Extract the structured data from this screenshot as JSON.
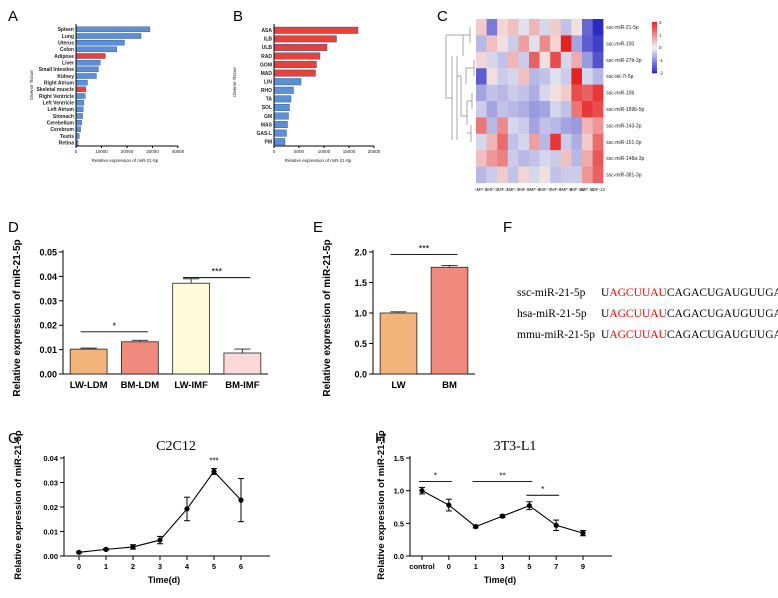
{
  "colors": {
    "blue_bar": "#5b8fd6",
    "red_bar": "#e8403a",
    "bar_edge": "#2a4c8a",
    "heat_low": "#2b2bc4",
    "heat_mid": "#f4f4f4",
    "heat_high": "#e52222",
    "ldm": "#f2b47a",
    "bm": "#f08a7e",
    "lwimf": "#fffbd8",
    "bmimf": "#fbd9d9",
    "seq_red": "#ff0000"
  },
  "panels": {
    "A": "A",
    "B": "B",
    "C": "C",
    "D": "D",
    "E": "E",
    "F": "F",
    "G": "G",
    "H": "H"
  },
  "chart_data": [
    {
      "id": "A",
      "type": "bar",
      "orientation": "horizontal",
      "xlabel": "Relative expression of miR-21-5p",
      "ylabel": "Diverse Tissue",
      "xticks": [
        "0",
        "10000",
        "20000",
        "30000",
        "40000"
      ],
      "xlim": [
        0,
        40000
      ],
      "categories": [
        "Spleen",
        "Lung",
        "Uterus",
        "Colon",
        "Adipose",
        "Liver",
        "Small Intestine",
        "Kidney",
        "Right Atrium",
        "Skeletal muscle",
        "Right Ventricle",
        "Left Ventricle",
        "Left Atrium",
        "Stomach",
        "Cerebellum",
        "Cerebrum",
        "Testis",
        "Retina"
      ],
      "values": [
        29000,
        25500,
        19000,
        16000,
        11500,
        9500,
        8800,
        8000,
        4500,
        3800,
        3600,
        3100,
        2800,
        2600,
        2200,
        1800,
        1300,
        800
      ],
      "highlight": [
        "Adipose",
        "Skeletal muscle"
      ]
    },
    {
      "id": "B",
      "type": "bar",
      "orientation": "horizontal",
      "xlabel": "Relative expression of miR-21-5p",
      "ylabel": "Diverse Tissue",
      "xticks": [
        "0",
        "5000",
        "10000",
        "15000",
        "20000"
      ],
      "xlim": [
        0,
        20000
      ],
      "categories": [
        "ASA",
        "ILB",
        "ULB",
        "RAD",
        "GOM",
        "MAD",
        "LIN",
        "RHO",
        "TA",
        "SOL",
        "GM",
        "MAS",
        "GAS-L",
        "PM"
      ],
      "values": [
        16800,
        12500,
        10600,
        9200,
        8500,
        8300,
        5400,
        3900,
        3400,
        3100,
        2900,
        2700,
        2500,
        2200
      ],
      "highlight": [
        "ASA",
        "ILB",
        "ULB",
        "RAD",
        "GOM",
        "MAD"
      ]
    },
    {
      "id": "C",
      "type": "heatmap",
      "rows": [
        "ssc-miR-21-5p",
        "ssc-miR-100",
        "ssc-miR-27b-3p",
        "ssc-let-7i-5p",
        "ssc-miR-10b",
        "ssc-miR-199b-5p",
        "ssc-miR-143-3p",
        "ssc-miR-151-3p",
        "ssc-miR-148a-3p",
        "ssc-miR-381-3p"
      ],
      "columns": [
        "IMF-1",
        "IMF-2",
        "IMF-3",
        "IMF-4",
        "IMF-5",
        "IMF-6",
        "IMF-7",
        "IMF-8",
        "IMF-9",
        "IMF-10",
        "IMF-11",
        "IMF-12"
      ],
      "scale_ticks": [
        "2",
        "1",
        "0",
        "-1",
        "-2"
      ],
      "zlim": [
        -2,
        2
      ],
      "values": [
        [
          0.4,
          -1.2,
          0.3,
          0.5,
          -0.2,
          0.6,
          -0.3,
          0.4,
          -0.5,
          0.2,
          -1.4,
          -2.0
        ],
        [
          -0.6,
          0.5,
          0.2,
          -0.4,
          0.8,
          -0.2,
          1.0,
          0.3,
          2.0,
          -0.8,
          -1.5,
          -1.8
        ],
        [
          0.3,
          -0.3,
          -0.5,
          0.6,
          -0.4,
          1.4,
          0.2,
          1.6,
          -0.3,
          0.7,
          -0.9,
          -1.6
        ],
        [
          -1.5,
          0.2,
          -0.4,
          -0.3,
          0.5,
          -0.6,
          -0.5,
          -0.2,
          -0.4,
          2.0,
          -0.3,
          -0.6
        ],
        [
          -0.8,
          -0.5,
          -0.6,
          -0.4,
          -0.5,
          -0.7,
          -0.3,
          0.2,
          0.4,
          1.6,
          1.4,
          1.8
        ],
        [
          -0.4,
          -0.8,
          -0.5,
          -0.6,
          -0.7,
          -0.9,
          -0.8,
          -0.3,
          -0.5,
          1.2,
          1.8,
          1.6
        ],
        [
          1.2,
          -0.6,
          1.0,
          -0.3,
          -0.4,
          -0.8,
          -0.5,
          -0.6,
          -0.8,
          -0.9,
          0.6,
          0.9
        ],
        [
          -0.3,
          0.6,
          1.3,
          -0.5,
          -0.3,
          0.8,
          -0.6,
          1.8,
          -0.4,
          -0.7,
          0.4,
          1.3
        ],
        [
          0.5,
          0.9,
          1.1,
          -0.4,
          -0.6,
          -0.5,
          -0.3,
          -0.4,
          0.5,
          -0.6,
          0.7,
          1.5
        ],
        [
          -0.6,
          -0.4,
          0.4,
          -0.5,
          0.3,
          -0.3,
          0.2,
          -0.5,
          -0.4,
          -0.4,
          0.9,
          1.4
        ]
      ]
    },
    {
      "id": "D",
      "type": "bar",
      "ylabel": "Relative expression of miR-21-5p",
      "categories": [
        "LW-LDM",
        "BM-LDM",
        "LW-IMF",
        "BM-IMF"
      ],
      "values": [
        0.0102,
        0.0132,
        0.0372,
        0.0086
      ],
      "errors": [
        0.0004,
        0.0006,
        0.0018,
        0.0016
      ],
      "ylim": [
        0,
        0.05
      ],
      "yticks": [
        "0.00",
        "0.01",
        "0.02",
        "0.03",
        "0.04",
        "0.05"
      ],
      "annotations": [
        "*",
        "***"
      ]
    },
    {
      "id": "E",
      "type": "bar",
      "ylabel": "Relative expression of miR-21-5p",
      "categories": [
        "LW",
        "BM"
      ],
      "values": [
        1.0,
        1.75
      ],
      "errors": [
        0.02,
        0.03
      ],
      "ylim": [
        0,
        2.0
      ],
      "yticks": [
        "0.0",
        "0.5",
        "1.0",
        "1.5",
        "2.0"
      ],
      "annotations": [
        "***"
      ]
    },
    {
      "id": "G",
      "type": "line",
      "title": "C2C12",
      "xlabel": "Time(d)",
      "ylabel": "Relative expression of miR-21-5p",
      "x": [
        "0",
        "1",
        "2",
        "3",
        "4",
        "5",
        "6"
      ],
      "values": [
        0.0015,
        0.0027,
        0.0037,
        0.0065,
        0.0192,
        0.0345,
        0.0228
      ],
      "errors": [
        0.0002,
        0.0003,
        0.0009,
        0.0015,
        0.0048,
        0.0012,
        0.0088
      ],
      "ylim": [
        0,
        0.04
      ],
      "yticks": [
        "0.00",
        "0.01",
        "0.02",
        "0.03",
        "0.04"
      ],
      "annotations": [
        "***"
      ]
    },
    {
      "id": "H",
      "type": "line",
      "title": "3T3-L1",
      "xlabel": "Time(d)",
      "ylabel": "Relative expression of miR-21-5p",
      "x": [
        "control",
        "0",
        "1",
        "3",
        "5",
        "7",
        "9"
      ],
      "values": [
        1.0,
        0.78,
        0.45,
        0.61,
        0.77,
        0.47,
        0.35
      ],
      "errors": [
        0.05,
        0.09,
        0.02,
        0.02,
        0.06,
        0.08,
        0.04
      ],
      "ylim": [
        0,
        1.5
      ],
      "yticks": [
        "0.0",
        "0.5",
        "1.0",
        "1.5"
      ],
      "annotations": [
        "*",
        "**",
        "*"
      ]
    }
  ],
  "panelF": {
    "rows": [
      {
        "name": "ssc-miR-21-5p",
        "prefix": "U",
        "seed": "AGCUUAU",
        "rest": "CAGACUGAUGUUGA"
      },
      {
        "name": "hsa-miR-21-5p",
        "prefix": "U",
        "seed": "AGCUUAU",
        "rest": "CAGACUGAUGUUGA"
      },
      {
        "name": "mmu-miR-21-5p",
        "prefix": "U",
        "seed": "AGCUUAU",
        "rest": "CAGACUGAUGUUGA"
      }
    ]
  }
}
